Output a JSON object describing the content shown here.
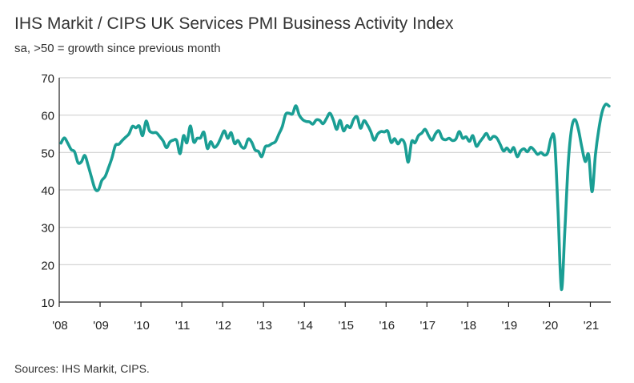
{
  "chart_data": {
    "type": "line",
    "title": "IHS Markit / CIPS UK Services PMI Business Activity Index",
    "subtitle": "sa, >50 = growth since previous month",
    "xlabel": "",
    "ylabel": "",
    "ylim": [
      10,
      70
    ],
    "yticks": [
      10,
      20,
      30,
      40,
      50,
      60,
      70
    ],
    "xticks": [
      "'08",
      "'09",
      "'10",
      "'11",
      "'12",
      "'13",
      "'14",
      "'15",
      "'16",
      "'17",
      "'18",
      "'19",
      "'20",
      "'21"
    ],
    "grid": true,
    "line_color": "#1a9e94",
    "series": [
      {
        "name": "UK Services PMI Business Activity Index",
        "start": "2008-01",
        "frequency": "monthly",
        "values": [
          52.5,
          53.9,
          52.5,
          50.8,
          50.2,
          47.3,
          47.5,
          49.2,
          46.5,
          43.3,
          40.3,
          40.0,
          42.5,
          43.6,
          46.0,
          48.6,
          51.9,
          52.2,
          53.2,
          54.1,
          55.0,
          57.0,
          56.6,
          57.1,
          54.5,
          58.4,
          55.8,
          55.3,
          55.3,
          54.3,
          53.1,
          51.3,
          52.8,
          53.3,
          53.2,
          49.7,
          54.5,
          52.6,
          57.1,
          52.8,
          53.8,
          53.9,
          55.4,
          51.1,
          52.9,
          51.4,
          52.1,
          54.0,
          55.8,
          53.8,
          55.3,
          52.4,
          53.2,
          51.6,
          51.3,
          53.6,
          52.8,
          50.7,
          50.3,
          48.9,
          51.5,
          51.8,
          52.4,
          52.9,
          54.9,
          56.9,
          60.2,
          60.5,
          60.3,
          62.5,
          60.0,
          58.8,
          58.3,
          58.2,
          57.6,
          58.7,
          58.6,
          57.7,
          59.1,
          60.5,
          58.7,
          56.2,
          58.6,
          55.8,
          57.2,
          56.7,
          58.9,
          59.5,
          56.5,
          58.5,
          57.4,
          55.6,
          53.3,
          54.9,
          55.6,
          55.5,
          55.7,
          52.7,
          53.7,
          52.3,
          53.5,
          52.3,
          47.4,
          52.9,
          52.6,
          54.5,
          55.2,
          56.2,
          54.5,
          53.3,
          55.0,
          55.8,
          53.8,
          53.4,
          53.8,
          53.2,
          53.6,
          55.6,
          53.8,
          54.2,
          53.0,
          54.5,
          51.7,
          52.8,
          54.0,
          55.1,
          53.5,
          54.3,
          53.9,
          52.2,
          50.4,
          51.2,
          50.1,
          51.3,
          48.9,
          50.4,
          51.0,
          50.2,
          51.4,
          50.6,
          49.5,
          50.0,
          49.3,
          50.0,
          53.9,
          53.2,
          34.5,
          13.4,
          29.0,
          47.1,
          56.5,
          58.8,
          56.1,
          51.4,
          47.6,
          49.4,
          39.5,
          49.5,
          56.3,
          61.0,
          62.9,
          62.4
        ]
      }
    ]
  },
  "source_text": "Sources: IHS Markit, CIPS."
}
